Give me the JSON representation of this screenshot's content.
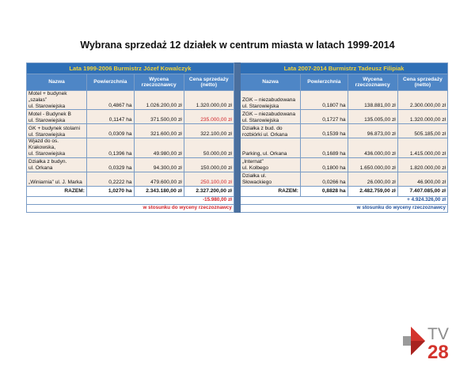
{
  "title": "Wybrana sprzedaż 12 działek w centrum miasta w latach 1999-2014",
  "left": {
    "period": "Lata 1999-2006    Burmistrz Józef Kowalczyk",
    "headers": [
      "Nazwa",
      "Powierzchnia",
      "Wycena rzeczoznawcy",
      "Cena sprzedaży (netto)"
    ],
    "rows": [
      {
        "name1": "Motel + budynek „szałas”",
        "name2": "ul. Starowiejska",
        "area": "0,4867 ha",
        "valuation": "1.026.200,00 zł",
        "price": "1.320.000,00 zł",
        "price_red": false
      },
      {
        "name1": "Motel - Budynek B",
        "name2": "ul. Starowiejska",
        "area": "0,1147 ha",
        "valuation": "371.500,00 zł",
        "price": "235.000,00 zł",
        "price_red": true
      },
      {
        "name1": "GK + budynek stolarni",
        "name2": "ul. Starowiejska",
        "area": "0,0309 ha",
        "valuation": "321.600,00 zł",
        "price": "322.100,00 zł",
        "price_red": false
      },
      {
        "name1": "Wjazd do os. Krakowska,",
        "name2": "ul. Starowiejska",
        "area": "0,1396 ha",
        "valuation": "49.980,00 zł",
        "price": "50.000,00 zł",
        "price_red": false
      },
      {
        "name1": "Działka z budyn.",
        "name2": "ul. Orkana",
        "area": "0,0329 ha",
        "valuation": "94.300,00 zł",
        "price": "150.000,00 zł",
        "price_red": false
      },
      {
        "name1": "",
        "name2": "„Winiarnia” ul. J. Marka",
        "area": "0,2222 ha",
        "valuation": "479.600,00 zł",
        "price": "250.100,00 zł",
        "price_red": true
      }
    ],
    "total_label": "RAZEM:",
    "total_area": "1,0270 ha",
    "total_valuation": "2.343.180,00 zł",
    "total_price": "2.327.200,00 zł",
    "diff": "-15.980,00 zł",
    "note": "w stosunku do wyceny rzeczoznawcy"
  },
  "right": {
    "period": "Lata 2007-2014    Burmistrz Tadeusz Filipiak",
    "headers": [
      "Nazwa",
      "Powierzchnia",
      "Wycena rzeczoznawcy",
      "Cena sprzedaży (netto)"
    ],
    "rows": [
      {
        "name1": "ZGK – niezabudowana",
        "name2": "ul. Starowiejska",
        "area": "0,1807 ha",
        "valuation": "138.881,00 zł",
        "price": "2.300.000,00 zł"
      },
      {
        "name1": "ZGK – niezabudowana",
        "name2": "ul. Starowiejska",
        "area": "0,1727 ha",
        "valuation": "135.005,00 zł",
        "price": "1.320.000,00 zł"
      },
      {
        "name1": "Działka z bud. do",
        "name2": "rozbiórki ul. Orkana",
        "area": "0,1539 ha",
        "valuation": "96.873,00 zł",
        "price": "505.185,00 zł"
      },
      {
        "name1": "",
        "name2": "Parking, ul. Orkana",
        "area": "0,1689 ha",
        "valuation": "436.000,00 zł",
        "price": "1.415.000,00 zł"
      },
      {
        "name1": "„Internat”",
        "name2": "ul. Kolbego",
        "area": "0,1800 ha",
        "valuation": "1.650.000,00 zł",
        "price": "1.820.000,00 zł"
      },
      {
        "name1": "Działka ul.",
        "name2": "Słowackiego",
        "area": "0,0266 ha",
        "valuation": "26.000,00 zł",
        "price": "46.900,00 zł"
      }
    ],
    "total_label": "RAZEM:",
    "total_area": "0,8828 ha",
    "total_valuation": "2.482.759,00 zł",
    "total_price": "7.407.085,00 zł",
    "diff": "+ 4.924.326,00 zł",
    "note": "w stosunku do wyceny rzeczoznawcy"
  },
  "logo": {
    "text_top": "TV",
    "text_bottom": "28",
    "colors": {
      "red": "#d3332c",
      "grey": "#8c8c8c",
      "dark_red": "#a8231f"
    }
  }
}
